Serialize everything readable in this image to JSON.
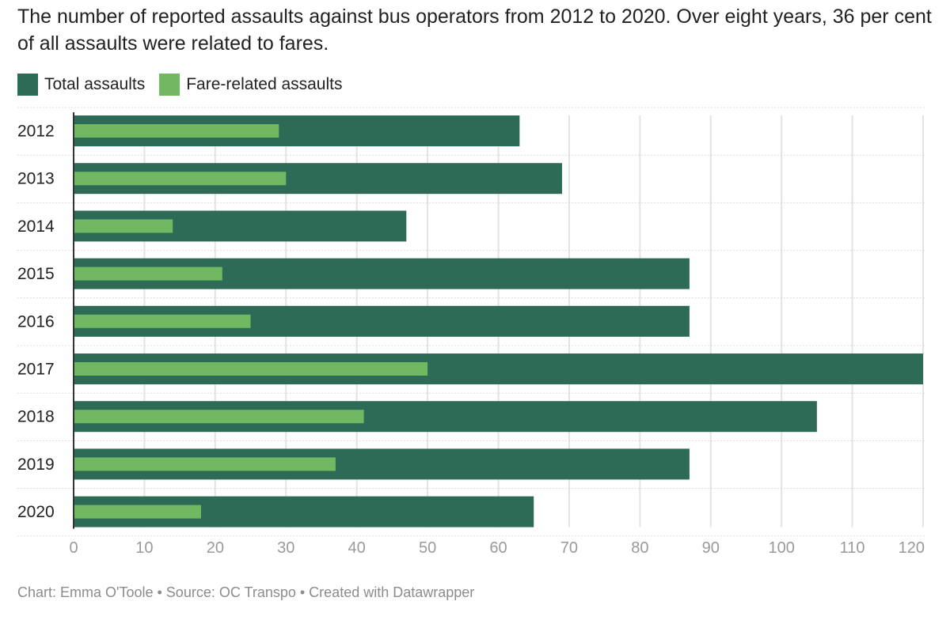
{
  "title": "The number of reported assaults against bus operators from 2012 to 2020. Over eight years, 36 per cent of all assaults were related to fares.",
  "legend": [
    {
      "label": "Total assaults",
      "color": "#2e6b57"
    },
    {
      "label": "Fare-related assaults",
      "color": "#72b862"
    }
  ],
  "footer": "Chart: Emma O'Toole • Source: OC Transpo • Created with Datawrapper",
  "chart_data": {
    "type": "bar",
    "orientation": "horizontal",
    "title": "The number of reported assaults against bus operators from 2012 to 2020. Over eight years, 36 per cent of all assaults were related to fares.",
    "categories": [
      "2012",
      "2013",
      "2014",
      "2015",
      "2016",
      "2017",
      "2018",
      "2019",
      "2020"
    ],
    "series": [
      {
        "name": "Total assaults",
        "color": "#2e6b57",
        "values": [
          63,
          69,
          47,
          87,
          87,
          120,
          105,
          87,
          65
        ]
      },
      {
        "name": "Fare-related assaults",
        "color": "#72b862",
        "values": [
          29,
          30,
          14,
          21,
          25,
          50,
          41,
          37,
          18
        ]
      }
    ],
    "xlim": [
      0,
      120
    ],
    "xticks": [
      "0",
      "10",
      "20",
      "30",
      "40",
      "50",
      "60",
      "70",
      "80",
      "90",
      "100",
      "110",
      "120"
    ],
    "grid": true,
    "legend_position": "top-left"
  }
}
